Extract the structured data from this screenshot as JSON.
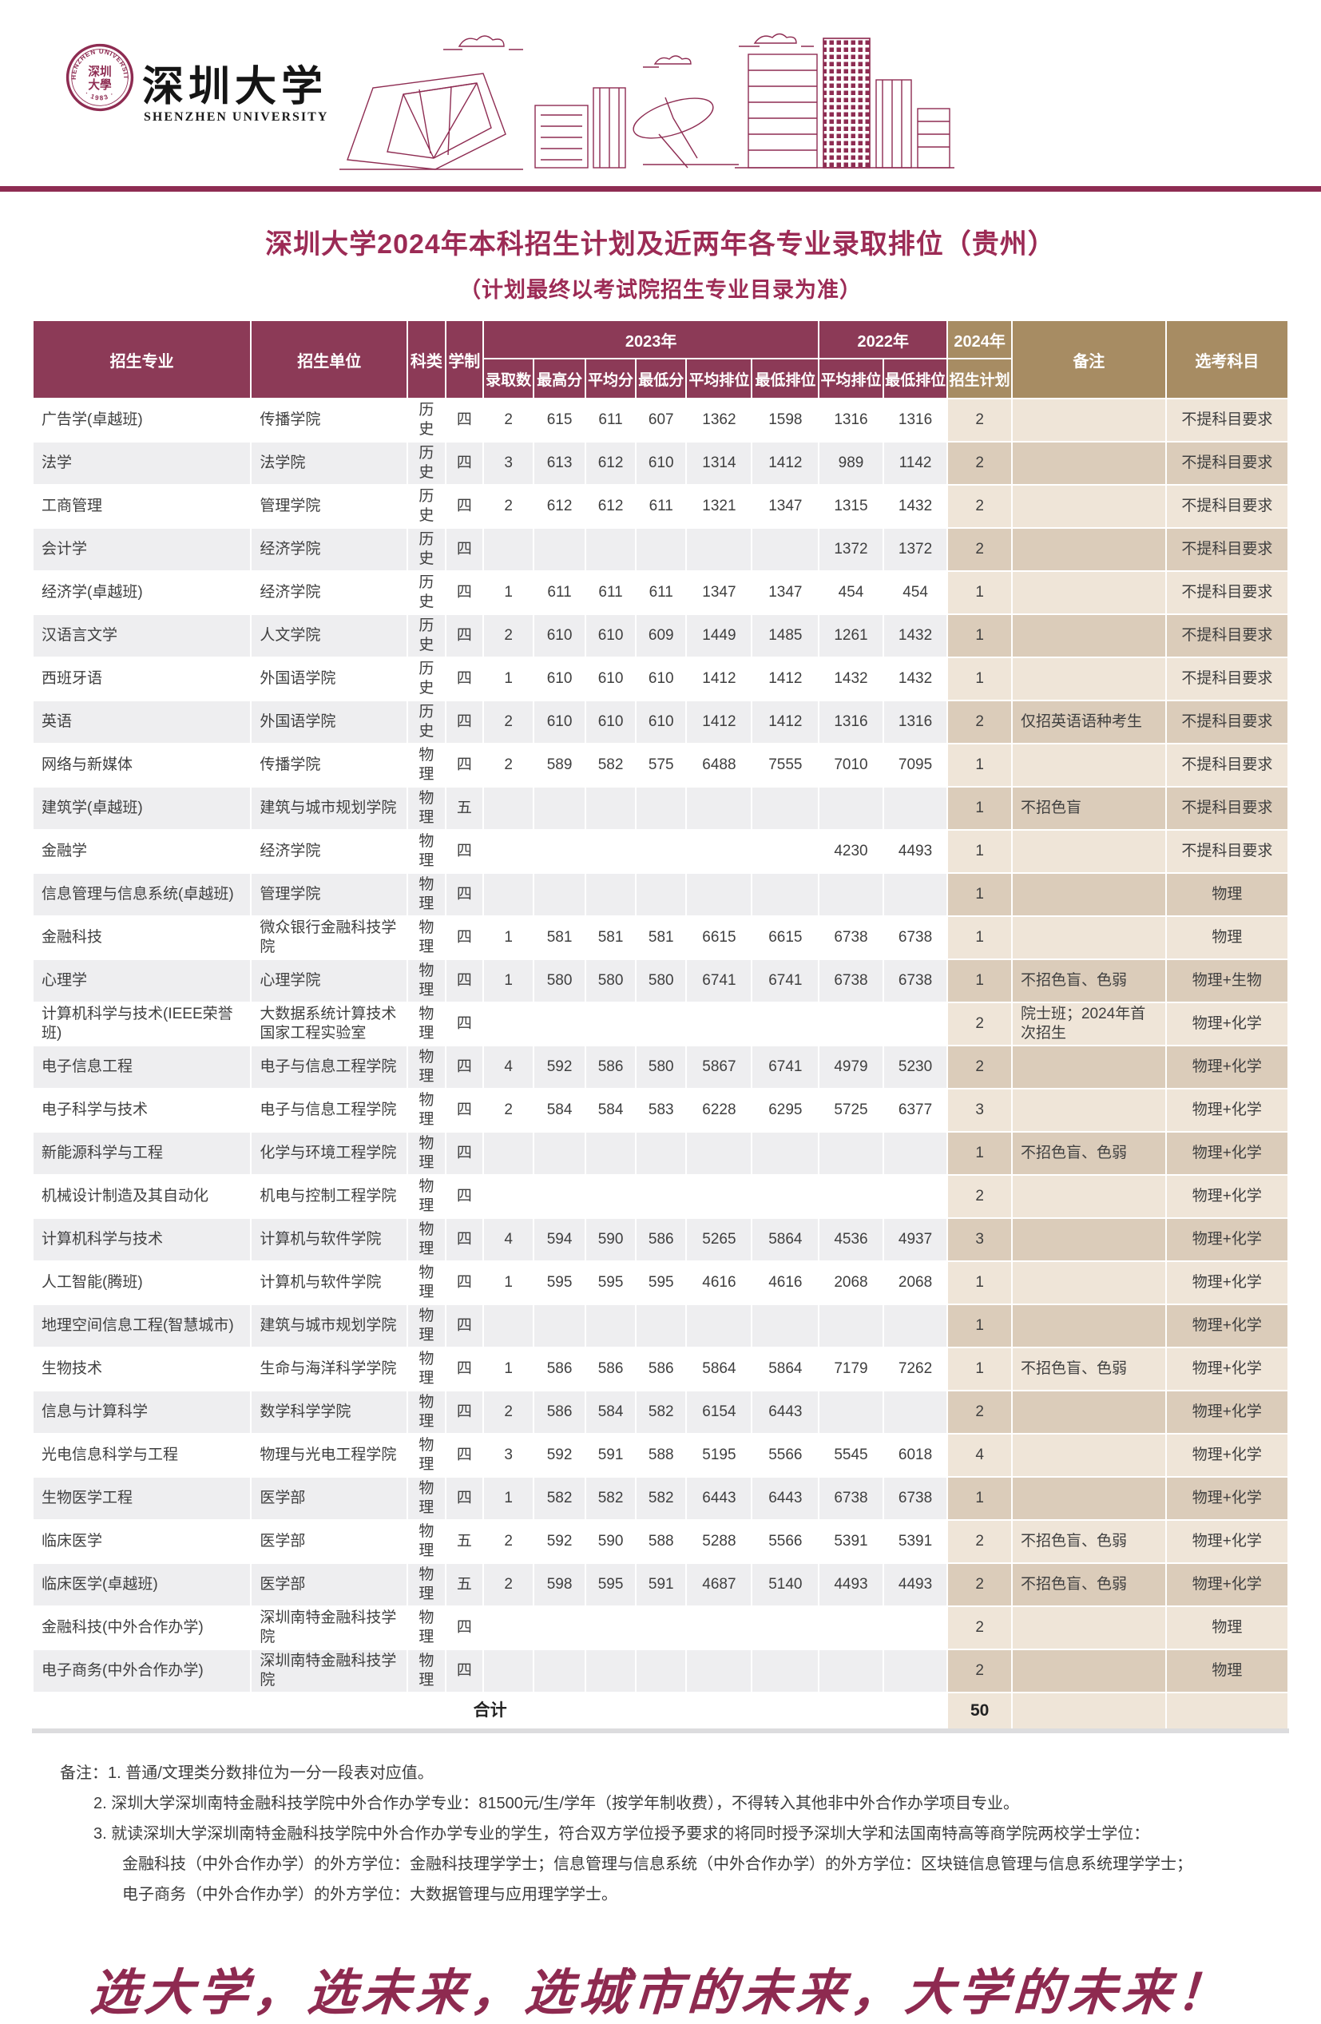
{
  "colors": {
    "brand_maroon": "#8E2C52",
    "header_cell_maroon": "#8C3A57",
    "tan_header": "#A78C63",
    "tan_row_light": "#EFE5D8",
    "tan_row_dark": "#DBCCBA",
    "row_gray": "#EEEEF0",
    "title_maroon": "#9C2B55"
  },
  "banner": {
    "university_cn": "深圳大学",
    "university_en": "SHENZHEN UNIVERSITY",
    "seal": {
      "arc_top": "SHENZHEN UNIVERSITY",
      "arc_bottom": "· 1983 ·",
      "inner_line1": "深圳",
      "inner_line2": "大學"
    }
  },
  "title": "深圳大学2024年本科招生计划及近两年各专业录取排位（贵州）",
  "subtitle": "（计划最终以考试院招生专业目录为准）",
  "table": {
    "headers": {
      "major": "招生专业",
      "unit": "招生单位",
      "category": "科类",
      "duration": "学制",
      "y2023": "2023年",
      "y2022": "2022年",
      "y2024": "2024年",
      "note": "备注",
      "subjects": "选考科目",
      "adm_count": "录取数",
      "max_score": "最高分",
      "avg_score": "平均分",
      "min_score": "最低分",
      "avg_rank": "平均排位",
      "min_rank": "最低排位",
      "plan": "招生计划"
    },
    "columns": [
      {
        "key": "major",
        "align": "left",
        "tan": false
      },
      {
        "key": "unit",
        "align": "left",
        "tan": false
      },
      {
        "key": "category",
        "align": "center",
        "tan": false
      },
      {
        "key": "duration",
        "align": "center",
        "tan": false
      },
      {
        "key": "adm_count_2023",
        "align": "center",
        "tan": false
      },
      {
        "key": "max_score_2023",
        "align": "center",
        "tan": false
      },
      {
        "key": "avg_score_2023",
        "align": "center",
        "tan": false
      },
      {
        "key": "min_score_2023",
        "align": "center",
        "tan": false
      },
      {
        "key": "avg_rank_2023",
        "align": "center",
        "tan": false
      },
      {
        "key": "min_rank_2023",
        "align": "center",
        "tan": false
      },
      {
        "key": "avg_rank_2022",
        "align": "center",
        "tan": false
      },
      {
        "key": "min_rank_2022",
        "align": "center",
        "tan": false
      },
      {
        "key": "plan_2024",
        "align": "center",
        "tan": true
      },
      {
        "key": "note",
        "align": "left",
        "tan": true
      },
      {
        "key": "subjects",
        "align": "center",
        "tan": true
      }
    ],
    "rows": [
      [
        "广告学(卓越班)",
        "传播学院",
        "历史",
        "四",
        "2",
        "615",
        "611",
        "607",
        "1362",
        "1598",
        "1316",
        "1316",
        "2",
        "",
        "不提科目要求"
      ],
      [
        "法学",
        "法学院",
        "历史",
        "四",
        "3",
        "613",
        "612",
        "610",
        "1314",
        "1412",
        "989",
        "1142",
        "2",
        "",
        "不提科目要求"
      ],
      [
        "工商管理",
        "管理学院",
        "历史",
        "四",
        "2",
        "612",
        "612",
        "611",
        "1321",
        "1347",
        "1315",
        "1432",
        "2",
        "",
        "不提科目要求"
      ],
      [
        "会计学",
        "经济学院",
        "历史",
        "四",
        "",
        "",
        "",
        "",
        "",
        "",
        "1372",
        "1372",
        "2",
        "",
        "不提科目要求"
      ],
      [
        "经济学(卓越班)",
        "经济学院",
        "历史",
        "四",
        "1",
        "611",
        "611",
        "611",
        "1347",
        "1347",
        "454",
        "454",
        "1",
        "",
        "不提科目要求"
      ],
      [
        "汉语言文学",
        "人文学院",
        "历史",
        "四",
        "2",
        "610",
        "610",
        "609",
        "1449",
        "1485",
        "1261",
        "1432",
        "1",
        "",
        "不提科目要求"
      ],
      [
        "西班牙语",
        "外国语学院",
        "历史",
        "四",
        "1",
        "610",
        "610",
        "610",
        "1412",
        "1412",
        "1432",
        "1432",
        "1",
        "",
        "不提科目要求"
      ],
      [
        "英语",
        "外国语学院",
        "历史",
        "四",
        "2",
        "610",
        "610",
        "610",
        "1412",
        "1412",
        "1316",
        "1316",
        "2",
        "仅招英语语种考生",
        "不提科目要求"
      ],
      [
        "网络与新媒体",
        "传播学院",
        "物理",
        "四",
        "2",
        "589",
        "582",
        "575",
        "6488",
        "7555",
        "7010",
        "7095",
        "1",
        "",
        "不提科目要求"
      ],
      [
        "建筑学(卓越班)",
        "建筑与城市规划学院",
        "物理",
        "五",
        "",
        "",
        "",
        "",
        "",
        "",
        "",
        "",
        "1",
        "不招色盲",
        "不提科目要求"
      ],
      [
        "金融学",
        "经济学院",
        "物理",
        "四",
        "",
        "",
        "",
        "",
        "",
        "",
        "4230",
        "4493",
        "1",
        "",
        "不提科目要求"
      ],
      [
        "信息管理与信息系统(卓越班)",
        "管理学院",
        "物理",
        "四",
        "",
        "",
        "",
        "",
        "",
        "",
        "",
        "",
        "1",
        "",
        "物理"
      ],
      [
        "金融科技",
        "微众银行金融科技学院",
        "物理",
        "四",
        "1",
        "581",
        "581",
        "581",
        "6615",
        "6615",
        "6738",
        "6738",
        "1",
        "",
        "物理"
      ],
      [
        "心理学",
        "心理学院",
        "物理",
        "四",
        "1",
        "580",
        "580",
        "580",
        "6741",
        "6741",
        "6738",
        "6738",
        "1",
        "不招色盲、色弱",
        "物理+生物"
      ],
      [
        "计算机科学与技术(IEEE荣誉班)",
        "大数据系统计算技术国家工程实验室",
        "物理",
        "四",
        "",
        "",
        "",
        "",
        "",
        "",
        "",
        "",
        "2",
        "院士班；2024年首次招生",
        "物理+化学"
      ],
      [
        "电子信息工程",
        "电子与信息工程学院",
        "物理",
        "四",
        "4",
        "592",
        "586",
        "580",
        "5867",
        "6741",
        "4979",
        "5230",
        "2",
        "",
        "物理+化学"
      ],
      [
        "电子科学与技术",
        "电子与信息工程学院",
        "物理",
        "四",
        "2",
        "584",
        "584",
        "583",
        "6228",
        "6295",
        "5725",
        "6377",
        "3",
        "",
        "物理+化学"
      ],
      [
        "新能源科学与工程",
        "化学与环境工程学院",
        "物理",
        "四",
        "",
        "",
        "",
        "",
        "",
        "",
        "",
        "",
        "1",
        "不招色盲、色弱",
        "物理+化学"
      ],
      [
        "机械设计制造及其自动化",
        "机电与控制工程学院",
        "物理",
        "四",
        "",
        "",
        "",
        "",
        "",
        "",
        "",
        "",
        "2",
        "",
        "物理+化学"
      ],
      [
        "计算机科学与技术",
        "计算机与软件学院",
        "物理",
        "四",
        "4",
        "594",
        "590",
        "586",
        "5265",
        "5864",
        "4536",
        "4937",
        "3",
        "",
        "物理+化学"
      ],
      [
        "人工智能(腾班)",
        "计算机与软件学院",
        "物理",
        "四",
        "1",
        "595",
        "595",
        "595",
        "4616",
        "4616",
        "2068",
        "2068",
        "1",
        "",
        "物理+化学"
      ],
      [
        "地理空间信息工程(智慧城市)",
        "建筑与城市规划学院",
        "物理",
        "四",
        "",
        "",
        "",
        "",
        "",
        "",
        "",
        "",
        "1",
        "",
        "物理+化学"
      ],
      [
        "生物技术",
        "生命与海洋科学学院",
        "物理",
        "四",
        "1",
        "586",
        "586",
        "586",
        "5864",
        "5864",
        "7179",
        "7262",
        "1",
        "不招色盲、色弱",
        "物理+化学"
      ],
      [
        "信息与计算科学",
        "数学科学学院",
        "物理",
        "四",
        "2",
        "586",
        "584",
        "582",
        "6154",
        "6443",
        "",
        "",
        "2",
        "",
        "物理+化学"
      ],
      [
        "光电信息科学与工程",
        "物理与光电工程学院",
        "物理",
        "四",
        "3",
        "592",
        "591",
        "588",
        "5195",
        "5566",
        "5545",
        "6018",
        "4",
        "",
        "物理+化学"
      ],
      [
        "生物医学工程",
        "医学部",
        "物理",
        "四",
        "1",
        "582",
        "582",
        "582",
        "6443",
        "6443",
        "6738",
        "6738",
        "1",
        "",
        "物理+化学"
      ],
      [
        "临床医学",
        "医学部",
        "物理",
        "五",
        "2",
        "592",
        "590",
        "588",
        "5288",
        "5566",
        "5391",
        "5391",
        "2",
        "不招色盲、色弱",
        "物理+化学"
      ],
      [
        "临床医学(卓越班)",
        "医学部",
        "物理",
        "五",
        "2",
        "598",
        "595",
        "591",
        "4687",
        "5140",
        "4493",
        "4493",
        "2",
        "不招色盲、色弱",
        "物理+化学"
      ],
      [
        "金融科技(中外合作办学)",
        "深圳南特金融科技学院",
        "物理",
        "四",
        "",
        "",
        "",
        "",
        "",
        "",
        "",
        "",
        "2",
        "",
        "物理"
      ],
      [
        "电子商务(中外合作办学)",
        "深圳南特金融科技学院",
        "物理",
        "四",
        "",
        "",
        "",
        "",
        "",
        "",
        "",
        "",
        "2",
        "",
        "物理"
      ]
    ],
    "total": {
      "label": "合计",
      "plan_2024": "50"
    }
  },
  "notes": [
    "备注：1. 普通/文理类分数排位为一分一段表对应值。",
    "2. 深圳大学深圳南特金融科技学院中外合作办学专业：81500元/生/学年（按学年制收费），不得转入其他非中外合作办学项目专业。",
    "3. 就读深圳大学深圳南特金融科技学院中外合作办学专业的学生，符合双方学位授予要求的将同时授予深圳大学和法国南特高等商学院两校学士学位：",
    "金融科技（中外合作办学）的外方学位：金融科技理学学士；信息管理与信息系统（中外合作办学）的外方学位：区块链信息管理与信息系统理学学士；",
    "电子商务（中外合作办学）的外方学位：大数据管理与应用理学学士。"
  ],
  "slogan": "选大学，选未来，选城市的未来，大学的未来！"
}
